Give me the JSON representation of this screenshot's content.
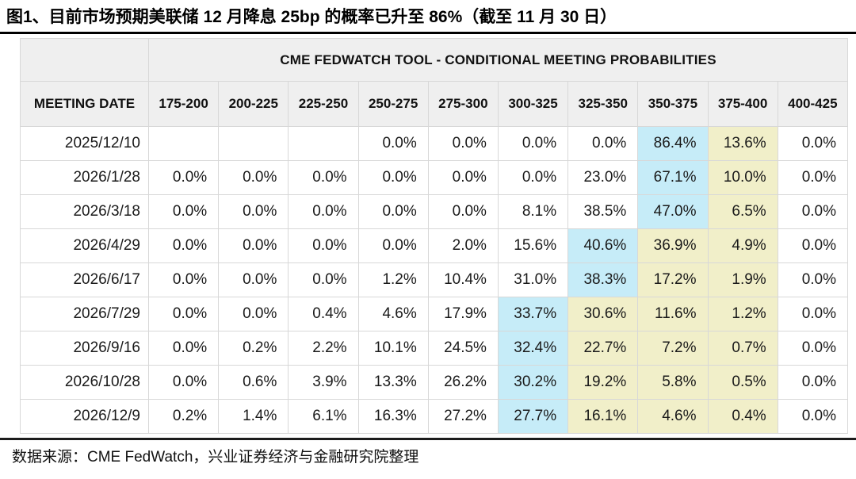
{
  "title": "图1、目前市场预期美联储 12 月降息 25bp 的概率已升至 86%（截至 11 月 30 日）",
  "source": "数据来源：CME FedWatch，兴业证券经济与金融研究院整理",
  "table": {
    "header": "CME FEDWATCH TOOL - CONDITIONAL MEETING PROBABILITIES",
    "date_column_label": "MEETING DATE",
    "rate_columns": [
      "175-200",
      "200-225",
      "225-250",
      "250-275",
      "275-300",
      "300-325",
      "325-350",
      "350-375",
      "375-400",
      "400-425"
    ],
    "rows": [
      {
        "date": "2025/12/10",
        "values": [
          "",
          "",
          "",
          "0.0%",
          "0.0%",
          "0.0%",
          "0.0%",
          "86.4%",
          "13.6%",
          "0.0%"
        ],
        "blue": 7,
        "yellow": [
          8
        ]
      },
      {
        "date": "2026/1/28",
        "values": [
          "0.0%",
          "0.0%",
          "0.0%",
          "0.0%",
          "0.0%",
          "0.0%",
          "23.0%",
          "67.1%",
          "10.0%",
          "0.0%"
        ],
        "blue": 7,
        "yellow": [
          8
        ]
      },
      {
        "date": "2026/3/18",
        "values": [
          "0.0%",
          "0.0%",
          "0.0%",
          "0.0%",
          "0.0%",
          "8.1%",
          "38.5%",
          "47.0%",
          "6.5%",
          "0.0%"
        ],
        "blue": 7,
        "yellow": [
          8
        ]
      },
      {
        "date": "2026/4/29",
        "values": [
          "0.0%",
          "0.0%",
          "0.0%",
          "0.0%",
          "2.0%",
          "15.6%",
          "40.6%",
          "36.9%",
          "4.9%",
          "0.0%"
        ],
        "blue": 6,
        "yellow": [
          7,
          8
        ]
      },
      {
        "date": "2026/6/17",
        "values": [
          "0.0%",
          "0.0%",
          "0.0%",
          "1.2%",
          "10.4%",
          "31.0%",
          "38.3%",
          "17.2%",
          "1.9%",
          "0.0%"
        ],
        "blue": 6,
        "yellow": [
          7,
          8
        ]
      },
      {
        "date": "2026/7/29",
        "values": [
          "0.0%",
          "0.0%",
          "0.4%",
          "4.6%",
          "17.9%",
          "33.7%",
          "30.6%",
          "11.6%",
          "1.2%",
          "0.0%"
        ],
        "blue": 5,
        "yellow": [
          6,
          7,
          8
        ]
      },
      {
        "date": "2026/9/16",
        "values": [
          "0.0%",
          "0.2%",
          "2.2%",
          "10.1%",
          "24.5%",
          "32.4%",
          "22.7%",
          "7.2%",
          "0.7%",
          "0.0%"
        ],
        "blue": 5,
        "yellow": [
          6,
          7,
          8
        ]
      },
      {
        "date": "2026/10/28",
        "values": [
          "0.0%",
          "0.6%",
          "3.9%",
          "13.3%",
          "26.2%",
          "30.2%",
          "19.2%",
          "5.8%",
          "0.5%",
          "0.0%"
        ],
        "blue": 5,
        "yellow": [
          6,
          7,
          8
        ]
      },
      {
        "date": "2026/12/9",
        "values": [
          "0.2%",
          "1.4%",
          "6.1%",
          "16.3%",
          "27.2%",
          "27.7%",
          "16.1%",
          "4.6%",
          "0.4%",
          "0.0%"
        ],
        "blue": 5,
        "yellow": [
          6,
          7,
          8
        ]
      }
    ]
  },
  "colors": {
    "highlight_blue": "#c6ecf8",
    "highlight_yellow": "#f1efc9",
    "header_bg": "#efefef",
    "grid_border": "#d8d8d8",
    "title_rule": "#000000",
    "bottom_rule": "#1c1c1c"
  },
  "chart_data": {
    "type": "table",
    "title": "CME FEDWATCH TOOL - CONDITIONAL MEETING PROBABILITIES",
    "row_label": "MEETING DATE",
    "columns": [
      "175-200",
      "200-225",
      "225-250",
      "250-275",
      "275-300",
      "300-325",
      "325-350",
      "350-375",
      "375-400",
      "400-425"
    ],
    "row_categories": [
      "2025/12/10",
      "2026/1/28",
      "2026/3/18",
      "2026/4/29",
      "2026/6/17",
      "2026/7/29",
      "2026/9/16",
      "2026/10/28",
      "2026/12/9"
    ],
    "values_pct": [
      [
        null,
        null,
        null,
        0.0,
        0.0,
        0.0,
        0.0,
        86.4,
        13.6,
        0.0
      ],
      [
        0.0,
        0.0,
        0.0,
        0.0,
        0.0,
        0.0,
        23.0,
        67.1,
        10.0,
        0.0
      ],
      [
        0.0,
        0.0,
        0.0,
        0.0,
        0.0,
        8.1,
        38.5,
        47.0,
        6.5,
        0.0
      ],
      [
        0.0,
        0.0,
        0.0,
        0.0,
        2.0,
        15.6,
        40.6,
        36.9,
        4.9,
        0.0
      ],
      [
        0.0,
        0.0,
        0.0,
        1.2,
        10.4,
        31.0,
        38.3,
        17.2,
        1.9,
        0.0
      ],
      [
        0.0,
        0.0,
        0.4,
        4.6,
        17.9,
        33.7,
        30.6,
        11.6,
        1.2,
        0.0
      ],
      [
        0.0,
        0.2,
        2.2,
        10.1,
        24.5,
        32.4,
        22.7,
        7.2,
        0.7,
        0.0
      ],
      [
        0.0,
        0.6,
        3.9,
        13.3,
        26.2,
        30.2,
        19.2,
        5.8,
        0.5,
        0.0
      ],
      [
        0.2,
        1.4,
        6.1,
        16.3,
        27.2,
        27.7,
        16.1,
        4.6,
        0.4,
        0.0
      ]
    ],
    "highlight_semantics": {
      "blue": "highest-probability cell in each row",
      "yellow": "cells to the right of the blue cell through the 375-400 column"
    }
  }
}
